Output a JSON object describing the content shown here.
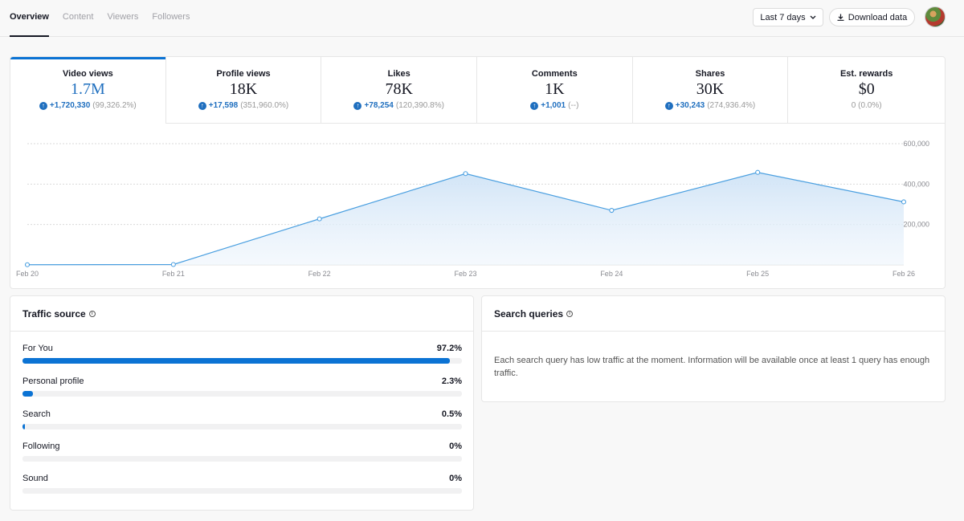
{
  "tabs": [
    {
      "label": "Overview",
      "active": true
    },
    {
      "label": "Content",
      "active": false
    },
    {
      "label": "Viewers",
      "active": false
    },
    {
      "label": "Followers",
      "active": false
    }
  ],
  "header": {
    "range_label": "Last 7 days",
    "download_label": "Download data"
  },
  "metrics": [
    {
      "label": "Video views",
      "value": "1.7M",
      "change_up": "+1,720,330",
      "change_pct": "(99,326.2%)",
      "has_arrow": true
    },
    {
      "label": "Profile views",
      "value": "18K",
      "change_up": "+17,598",
      "change_pct": "(351,960.0%)",
      "has_arrow": true
    },
    {
      "label": "Likes",
      "value": "78K",
      "change_up": "+78,254",
      "change_pct": "(120,390.8%)",
      "has_arrow": true
    },
    {
      "label": "Comments",
      "value": "1K",
      "change_up": "+1,001",
      "change_pct": "(--)",
      "has_arrow": true
    },
    {
      "label": "Shares",
      "value": "30K",
      "change_up": "+30,243",
      "change_pct": "(274,936.4%)",
      "has_arrow": true
    },
    {
      "label": "Est. rewards",
      "value": "$0",
      "change_up": "",
      "change_pct": "0 (0.0%)",
      "has_arrow": false
    }
  ],
  "chart_data": {
    "type": "area",
    "x": [
      "Feb 20",
      "Feb 21",
      "Feb 22",
      "Feb 23",
      "Feb 24",
      "Feb 25",
      "Feb 26"
    ],
    "series": [
      {
        "values": [
          1000,
          2000,
          228000,
          452000,
          270000,
          458000,
          312000
        ]
      }
    ],
    "yticks": [
      "200,000",
      "400,000",
      "600,000"
    ],
    "ylim": [
      0,
      600000
    ],
    "grid": true,
    "color": "#4a9fe0"
  },
  "traffic": {
    "title": "Traffic source",
    "sources": [
      {
        "label": "For You",
        "pct": "97.2%",
        "value": 97.2
      },
      {
        "label": "Personal profile",
        "pct": "2.3%",
        "value": 2.3
      },
      {
        "label": "Search",
        "pct": "0.5%",
        "value": 0.5
      },
      {
        "label": "Following",
        "pct": "0%",
        "value": 0
      },
      {
        "label": "Sound",
        "pct": "0%",
        "value": 0
      }
    ]
  },
  "search": {
    "title": "Search queries",
    "message": "Each search query has low traffic at the moment. Information will be available once at least 1 query has enough traffic."
  },
  "colors": {
    "accent": "#0b73d4"
  }
}
